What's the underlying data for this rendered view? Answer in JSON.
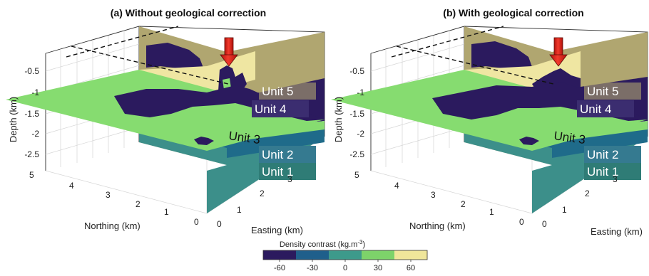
{
  "chart_data": [
    {
      "type": "heatmap",
      "title": "(a) Without geological correction",
      "zlabel": "Depth (km)",
      "xlabel": "Easting (km)",
      "ylabel": "Northing (km)",
      "z_ticks": [
        "-0.5",
        "-1",
        "-1.5",
        "-2",
        "-2.5"
      ],
      "x_ticks": [
        "0",
        "1",
        "2",
        "3"
      ],
      "y_ticks": [
        "5",
        "4",
        "3",
        "2",
        "1",
        "0"
      ],
      "units": [
        "Unit 5",
        "Unit 4",
        "Unit 3",
        "Unit 2",
        "Unit 1"
      ],
      "grid": true
    },
    {
      "type": "heatmap",
      "title": "(b) With geological correction",
      "zlabel": "Depth (km)",
      "xlabel": "Easting (km)",
      "ylabel": "Northing (km)",
      "z_ticks": [
        "-0.5",
        "-1",
        "-1.5",
        "-2",
        "-2.5"
      ],
      "x_ticks": [
        "0",
        "1",
        "2",
        "3"
      ],
      "y_ticks": [
        "5",
        "4",
        "3",
        "2",
        "1",
        "0"
      ],
      "units": [
        "Unit 5",
        "Unit 4",
        "Unit 3",
        "Unit 2",
        "Unit 1"
      ],
      "grid": true
    }
  ],
  "colorbar": {
    "label": "Density contrast (kg.m",
    "label_sup": "-3",
    "label_end": ")",
    "ticks": [
      "-60",
      "-30",
      "0",
      "30",
      "60"
    ],
    "colors": [
      "#2b1a5e",
      "#1f5f8b",
      "#3d9a8b",
      "#7dd36a",
      "#f0e69a"
    ]
  },
  "colors": {
    "unit5": "#b0a670",
    "unit5_light": "#efe6a2",
    "unit4": "#2b1a5e",
    "unit3": "#86dc70",
    "unit2": "#1f6b8a",
    "unit1": "#3c8f8a",
    "arrow": "#e8241a"
  }
}
